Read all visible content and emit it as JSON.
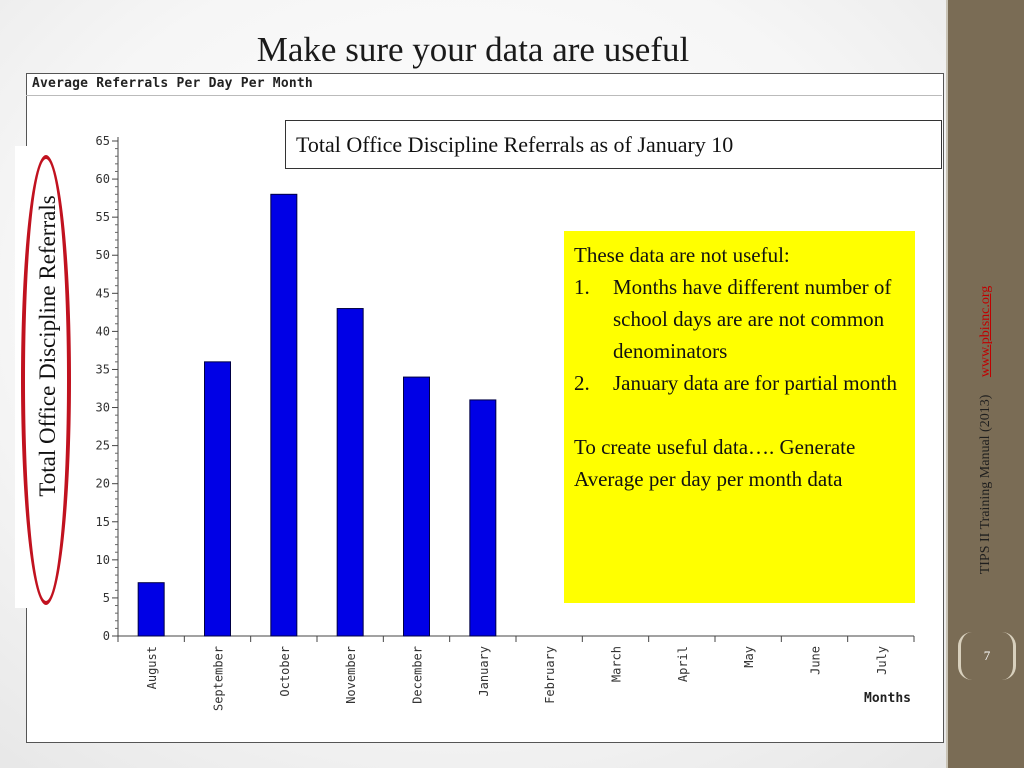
{
  "slide": {
    "title": "Make sure your data are useful",
    "callout_title": "Total Office Discipline Referrals as of January 10",
    "ylabel_overlay": "Total Office Discipline Referrals",
    "note": {
      "heading": "These data are not useful:",
      "items": [
        {
          "num": "1.",
          "text": "Months have different number of school days are are not common denominators"
        },
        {
          "num": "2.",
          "text": "January data are for partial month"
        }
      ],
      "paragraph": "To create useful data…. Generate Average per day per month data"
    },
    "sidebar": {
      "citation": "TIPS II Training Manual (2013)",
      "link": "www.pbisnc.org",
      "page_number": "7"
    },
    "colors": {
      "bar": "#0000e6",
      "callout": "#ffff00",
      "oval": "#c1121f",
      "sidebar": "#7a6c55"
    }
  },
  "chart_data": {
    "type": "bar",
    "title": "Average Referrals Per Day Per Month",
    "xlabel": "Months",
    "ylabel": "",
    "categories": [
      "August",
      "September",
      "October",
      "November",
      "December",
      "January",
      "February",
      "March",
      "April",
      "May",
      "June",
      "July"
    ],
    "values": [
      7,
      36,
      58,
      43,
      34,
      31,
      null,
      null,
      null,
      null,
      null,
      null
    ],
    "ylim": [
      0,
      65
    ],
    "yticks": [
      0,
      5,
      10,
      15,
      20,
      25,
      30,
      35,
      40,
      45,
      50,
      55,
      60,
      65
    ],
    "grid": false,
    "legend": "none"
  }
}
